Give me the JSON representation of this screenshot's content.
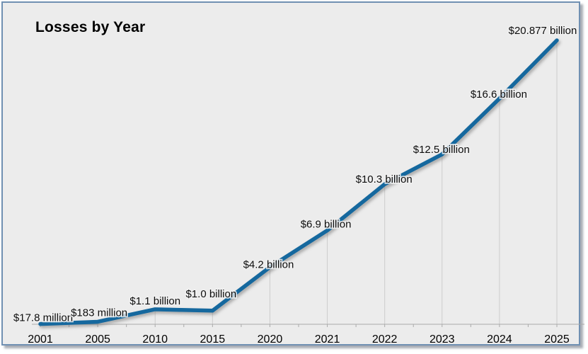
{
  "frame": {
    "background_color": "#ececec",
    "border_color": "#7090b2"
  },
  "chart_data": {
    "type": "line",
    "title": "Losses by Year",
    "categories": [
      "2001",
      "2005",
      "2010",
      "2015",
      "2020",
      "2021",
      "2022",
      "2023",
      "2024",
      "2025"
    ],
    "values_billions_usd": [
      0.0178,
      0.183,
      1.1,
      1.0,
      4.2,
      6.9,
      10.3,
      12.5,
      16.6,
      20.877
    ],
    "point_labels": [
      "$17.8 million",
      "$183 million",
      "$1.1 billion",
      "$1.0 billion",
      "$4.2 billion",
      "$6.9 billion",
      "$10.3 billion",
      "$12.5 billion",
      "$16.6 billion",
      "$20.877 billion"
    ],
    "xlabel": "",
    "ylabel": "",
    "ylim_billions": [
      0,
      20.877
    ],
    "line_color": "#15689e",
    "grid": "vertical drop lines from each point to x-axis",
    "legend": "none",
    "markers": "none"
  }
}
